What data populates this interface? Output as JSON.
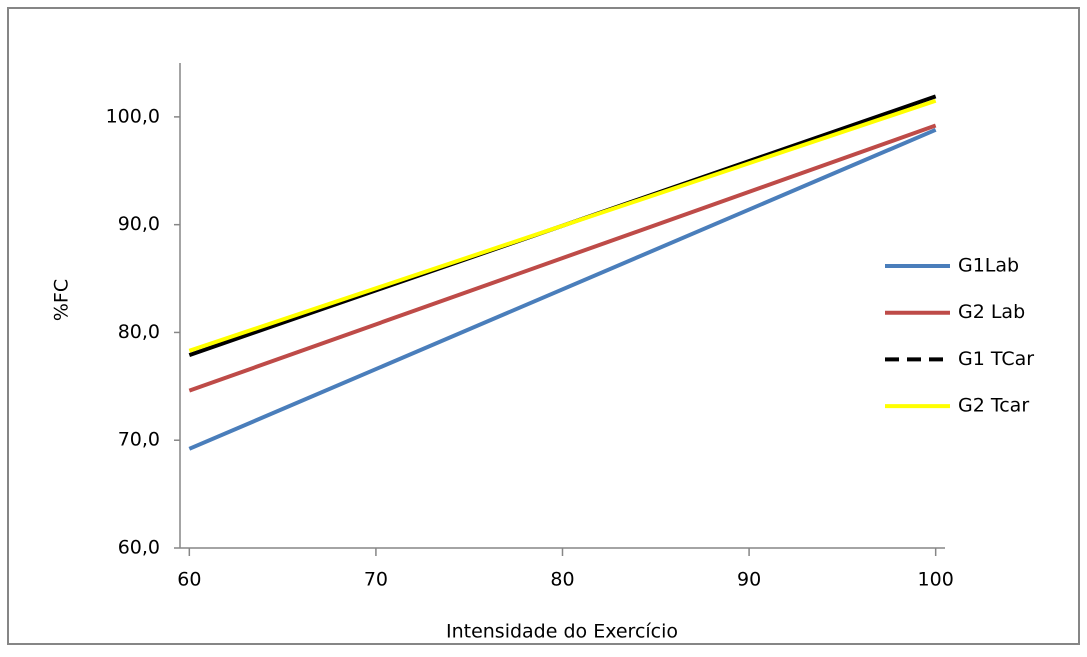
{
  "chart_data": {
    "type": "line",
    "xlabel": "Intensidade do Exercício",
    "ylabel": "%FC",
    "x": [
      60,
      100
    ],
    "series": [
      {
        "name": "G1Lab",
        "color": "#4a7ebb",
        "values": [
          69.2,
          98.8
        ]
      },
      {
        "name": "G2 Lab",
        "color": "#be4b48",
        "values": [
          74.6,
          99.2
        ]
      },
      {
        "name": "G1 TCar",
        "color": "#000000",
        "dashed": true,
        "values": [
          77.9,
          101.9
        ]
      },
      {
        "name": "G2 Tcar",
        "color": "#ffff00",
        "values": [
          78.3,
          101.5
        ]
      }
    ],
    "xlim": [
      59.5,
      100.5
    ],
    "xticks": [
      60,
      70,
      80,
      90,
      100
    ],
    "ylim": [
      60,
      105
    ],
    "yticks": [
      {
        "value": 60,
        "label": "60,0"
      },
      {
        "value": 70,
        "label": "70,0"
      },
      {
        "value": 80,
        "label": "80,0"
      },
      {
        "value": 90,
        "label": "90,0"
      },
      {
        "value": 100,
        "label": "100,0"
      }
    ],
    "legend": "right"
  }
}
